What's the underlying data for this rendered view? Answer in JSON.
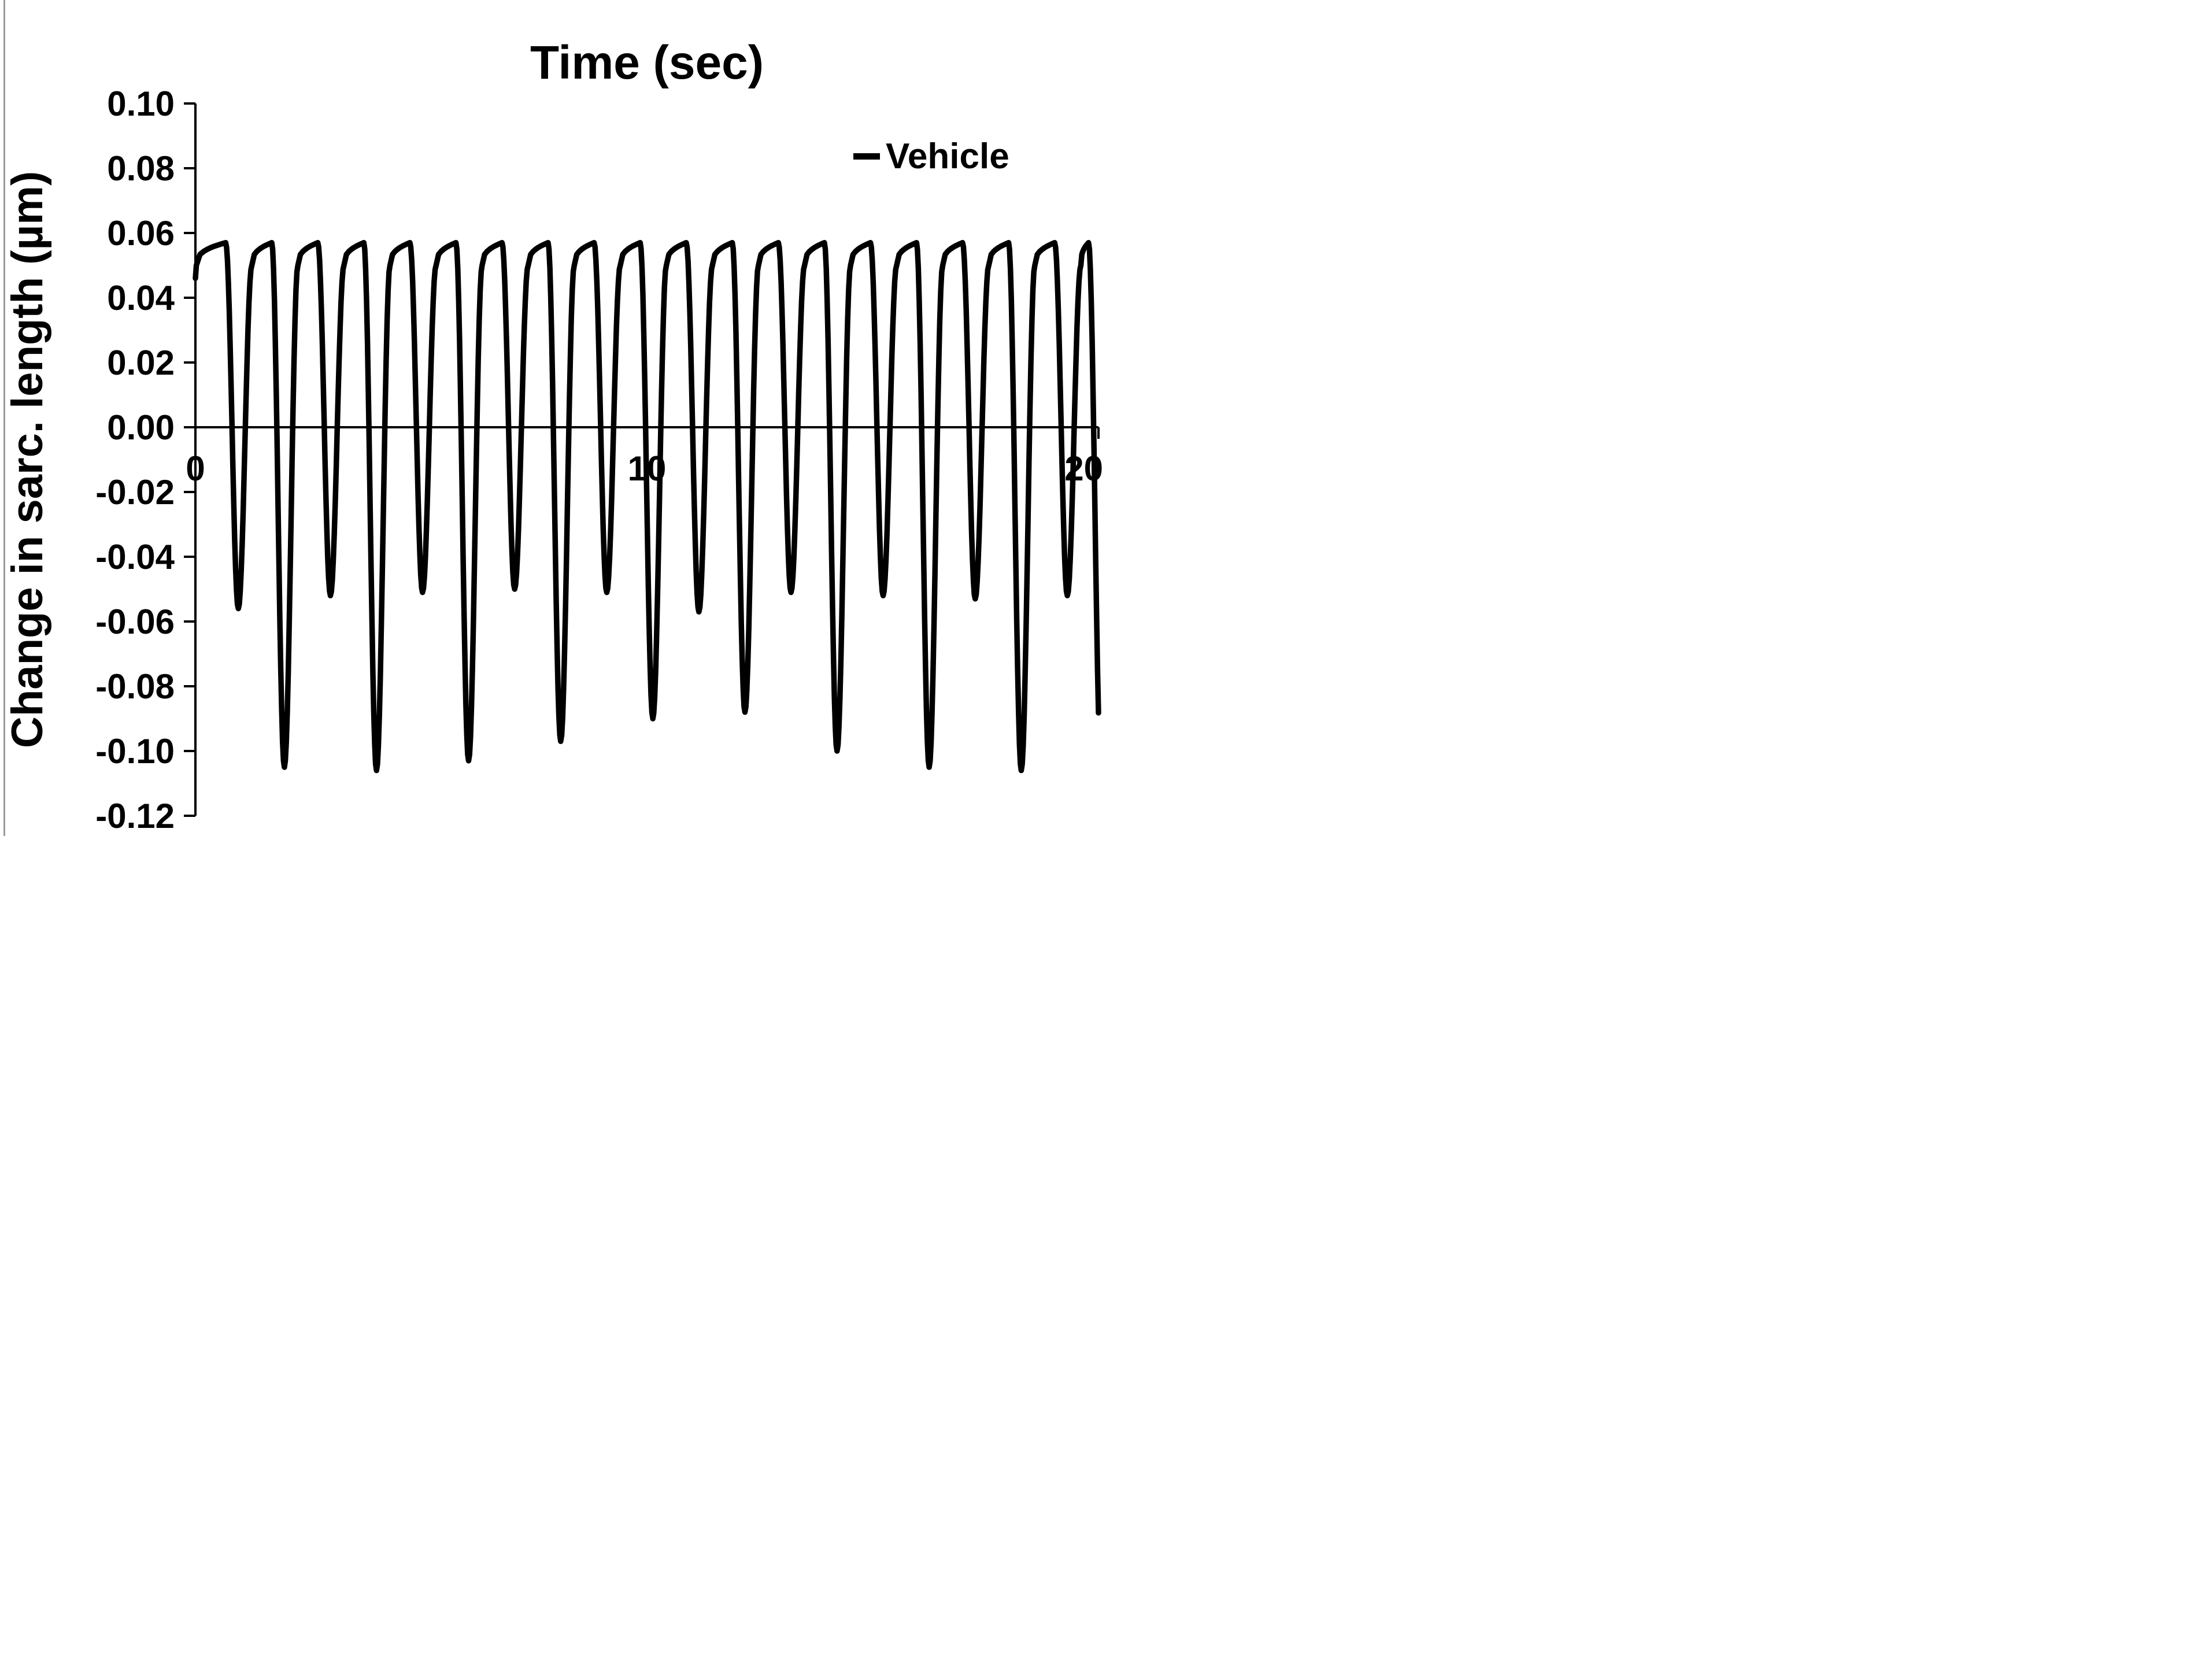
{
  "chart_data": {
    "type": "line",
    "title": "Time (sec)",
    "xlabel": "Time (sec)",
    "ylabel": "Change in sarc. length (µm)",
    "xlim": [
      0,
      20
    ],
    "ylim": [
      -0.12,
      0.1
    ],
    "grid": false,
    "axis_color": "#000000",
    "x_ticks": [
      {
        "value": 0,
        "label": "0"
      },
      {
        "value": 10,
        "label": "10"
      },
      {
        "value": 20,
        "label": "20"
      }
    ],
    "y_ticks": [
      {
        "value": 0.1,
        "label": "0.10"
      },
      {
        "value": 0.08,
        "label": "0.08"
      },
      {
        "value": 0.06,
        "label": "0.06"
      },
      {
        "value": 0.04,
        "label": "0.04"
      },
      {
        "value": 0.02,
        "label": "0.02"
      },
      {
        "value": 0.0,
        "label": "0.00"
      },
      {
        "value": -0.02,
        "label": "-0.02"
      },
      {
        "value": -0.04,
        "label": "-0.04"
      },
      {
        "value": -0.06,
        "label": "-0.06"
      },
      {
        "value": -0.08,
        "label": "-0.08"
      },
      {
        "value": -0.1,
        "label": "-0.10"
      },
      {
        "value": -0.12,
        "label": "-0.12"
      }
    ],
    "legend": {
      "position": "top-right",
      "entries": [
        {
          "label": "Vehicle",
          "color": "#000000"
        }
      ]
    },
    "series": [
      {
        "name": "Vehicle",
        "color": "#000000",
        "stroke_width": 9.5,
        "approx_period_sec": 1.02,
        "plateau_high": 0.057,
        "plateau_low": 0.05,
        "start_y": 0.046,
        "drop_width_sec": 0.28,
        "rise_width_sec": 0.3,
        "spikes": [
          {
            "t": 0.95,
            "depth": -0.056
          },
          {
            "t": 1.97,
            "depth": -0.105
          },
          {
            "t": 2.99,
            "depth": -0.052
          },
          {
            "t": 4.01,
            "depth": -0.106
          },
          {
            "t": 5.03,
            "depth": -0.051
          },
          {
            "t": 6.05,
            "depth": -0.103
          },
          {
            "t": 7.07,
            "depth": -0.05
          },
          {
            "t": 8.09,
            "depth": -0.097
          },
          {
            "t": 9.11,
            "depth": -0.051
          },
          {
            "t": 10.13,
            "depth": -0.09
          },
          {
            "t": 11.15,
            "depth": -0.057
          },
          {
            "t": 12.17,
            "depth": -0.088
          },
          {
            "t": 13.19,
            "depth": -0.051
          },
          {
            "t": 14.21,
            "depth": -0.1
          },
          {
            "t": 15.23,
            "depth": -0.052
          },
          {
            "t": 16.25,
            "depth": -0.105
          },
          {
            "t": 17.27,
            "depth": -0.053
          },
          {
            "t": 18.29,
            "depth": -0.106
          },
          {
            "t": 19.31,
            "depth": -0.052
          },
          {
            "t": 20.06,
            "depth": -0.106
          }
        ]
      }
    ]
  }
}
